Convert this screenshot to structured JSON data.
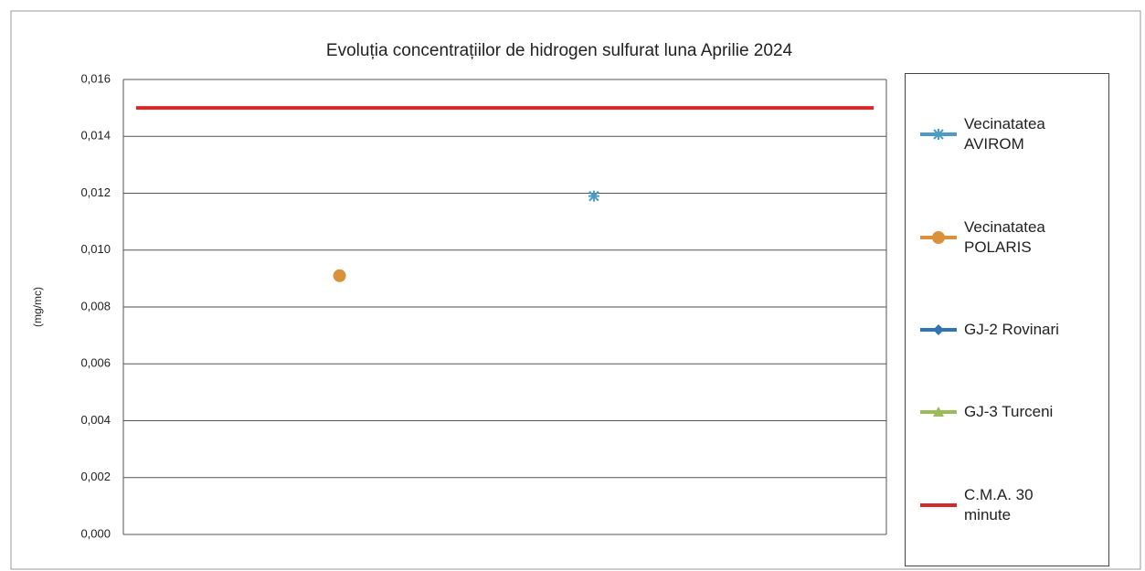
{
  "chart_data": {
    "type": "line",
    "title": "Evoluția concentrațiilor de hidrogen sulfurat luna Aprilie 2024",
    "y_label": "(mg/mc)",
    "categories": [
      null,
      null,
      null,
      null,
      null,
      null,
      null,
      null,
      null,
      null,
      null,
      null,
      null,
      null,
      null,
      null,
      null,
      null,
      null,
      null,
      null,
      null,
      null,
      null,
      null,
      null,
      null,
      null,
      null,
      null
    ],
    "series": [
      {
        "name": "Vecinatatea AVIROM",
        "color": "#4a9cc4",
        "marker": "star",
        "values": [
          null,
          null,
          null,
          null,
          null,
          null,
          null,
          null,
          null,
          null,
          null,
          null,
          null,
          null,
          null,
          null,
          null,
          null,
          0.0119,
          null,
          null,
          null,
          null,
          null,
          null,
          null,
          null,
          null,
          null,
          null
        ]
      },
      {
        "name": "Vecinatatea POLARIS",
        "color": "#d9913a",
        "marker": "circle",
        "values": [
          null,
          null,
          null,
          null,
          null,
          null,
          null,
          null,
          0.0091,
          null,
          null,
          null,
          null,
          null,
          null,
          null,
          null,
          null,
          null,
          null,
          null,
          null,
          null,
          null,
          null,
          null,
          null,
          null,
          null,
          null
        ]
      },
      {
        "name": "GJ-2 Rovinari",
        "color": "#2e75b6",
        "marker": "diamond",
        "values": [
          null,
          null,
          null,
          null,
          null,
          null,
          null,
          null,
          null,
          null,
          null,
          null,
          null,
          null,
          null,
          null,
          null,
          null,
          null,
          null,
          null,
          null,
          null,
          null,
          null,
          null,
          null,
          null,
          null,
          null
        ]
      },
      {
        "name": "GJ-3 Turceni",
        "color": "#9bbb59",
        "marker": "triangle",
        "values": [
          null,
          null,
          null,
          null,
          null,
          null,
          null,
          null,
          null,
          null,
          null,
          null,
          null,
          null,
          null,
          null,
          null,
          null,
          null,
          null,
          null,
          null,
          null,
          null,
          null,
          null,
          null,
          null,
          null,
          null
        ]
      },
      {
        "name": "C.M.A. 30 minute",
        "color": "#d42a2a",
        "marker": "none",
        "values": [
          0.015,
          0.015,
          0.015,
          0.015,
          0.015,
          0.015,
          0.015,
          0.015,
          0.015,
          0.015,
          0.015,
          0.015,
          0.015,
          0.015,
          0.015,
          0.015,
          0.015,
          0.015,
          0.015,
          0.015,
          0.015,
          0.015,
          0.015,
          0.015,
          0.015,
          0.015,
          0.015,
          0.015,
          0.015,
          0.015
        ]
      }
    ],
    "ylim": [
      0,
      0.016
    ],
    "yticks": [
      {
        "value": 0,
        "label": "0,000"
      },
      {
        "value": 0.002,
        "label": "0,002"
      },
      {
        "value": 0.004,
        "label": "0,004"
      },
      {
        "value": 0.006,
        "label": "0,006"
      },
      {
        "value": 0.008,
        "label": "0,008"
      },
      {
        "value": 0.01,
        "label": "0,010"
      },
      {
        "value": 0.012,
        "label": "0,012"
      },
      {
        "value": 0.014,
        "label": "0,014"
      },
      {
        "value": 0.016,
        "label": "0,016"
      }
    ],
    "grid": true,
    "legend": "right"
  }
}
